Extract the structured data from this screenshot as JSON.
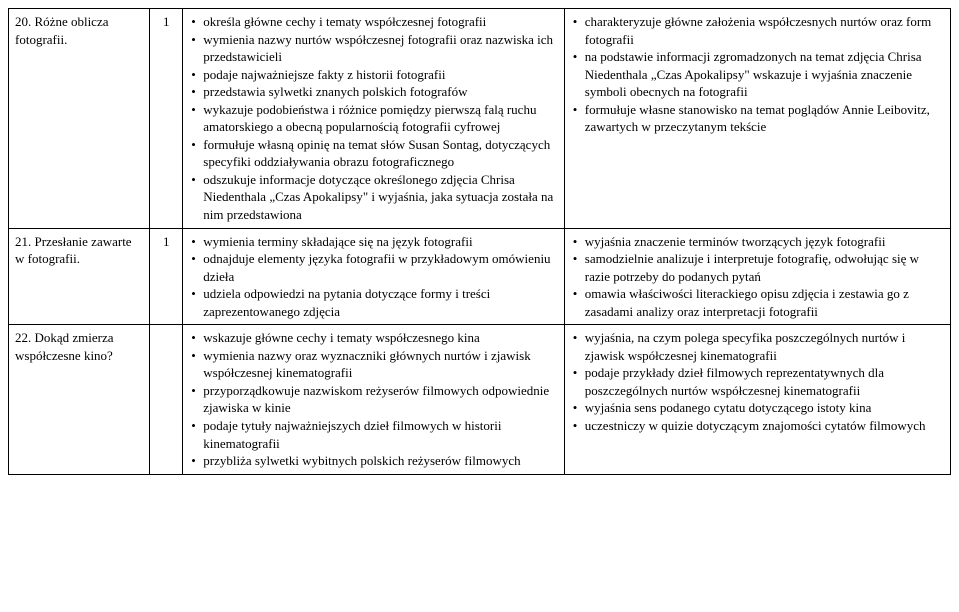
{
  "rows": [
    {
      "topic": "20. Różne oblicza fotografii.",
      "num": "1",
      "col3": [
        "określa główne cechy i tematy współczesnej fotografii",
        "wymienia nazwy nurtów współczesnej fotografii oraz nazwiska ich przedstawicieli",
        "podaje najważniejsze fakty z historii fotografii",
        "przedstawia sylwetki znanych polskich fotografów",
        "wykazuje podobieństwa i różnice pomiędzy pierwszą falą ruchu amatorskiego a obecną popularnością fotografii cyfrowej",
        "formułuje własną opinię na temat słów Susan Sontag, dotyczących specyfiki oddziaływania obrazu fotograficznego",
        "odszukuje informacje dotyczące określonego zdjęcia Chrisa Niedenthala „Czas Apokalipsy\" i wyjaśnia, jaka sytuacja została na nim przedstawiona"
      ],
      "col4": [
        "charakteryzuje główne założenia współczesnych nurtów oraz form fotografii",
        "na podstawie informacji zgromadzonych na temat zdjęcia Chrisa Niedenthala „Czas Apokalipsy\" wskazuje i wyjaśnia znaczenie symboli obecnych na fotografii",
        "formułuje własne stanowisko na temat poglądów Annie Leibovitz, zawartych w przeczytanym tekście"
      ]
    },
    {
      "topic": "21. Przesłanie zawarte w fotografii.",
      "num": "1",
      "col3": [
        "wymienia terminy składające się na język fotografii",
        "odnajduje elementy języka fotografii w przykładowym omówieniu dzieła",
        "udziela odpowiedzi na pytania dotyczące formy i treści zaprezentowanego zdjęcia"
      ],
      "col4": [
        "wyjaśnia znaczenie terminów tworzących język fotografii",
        "samodzielnie analizuje i interpretuje fotografię, odwołując się w razie potrzeby do podanych pytań",
        "omawia właściwości literackiego opisu zdjęcia i zestawia go z zasadami analizy oraz interpretacji fotografii"
      ]
    },
    {
      "topic": "22. Dokąd zmierza współczesne kino?",
      "num": "",
      "col3": [
        "wskazuje główne cechy i tematy współczesnego kina",
        "wymienia nazwy oraz wyznaczniki głównych nurtów i zjawisk współczesnej kinematografii",
        "przyporządkowuje nazwiskom reżyserów filmowych odpowiednie zjawiska w kinie",
        "podaje tytuły najważniejszych dzieł filmowych w historii kinematografii",
        "przybliża sylwetki wybitnych polskich reżyserów filmowych"
      ],
      "col4": [
        "wyjaśnia, na czym polega specyfika poszczególnych nurtów i zjawisk współczesnej kinematografii",
        "podaje przykłady dzieł filmowych reprezentatywnych dla poszczególnych nurtów współczesnej kinematografii",
        "wyjaśnia sens podanego cytatu dotyczącego istoty kina",
        "uczestniczy w quizie dotyczącym znajomości cytatów filmowych"
      ]
    }
  ]
}
